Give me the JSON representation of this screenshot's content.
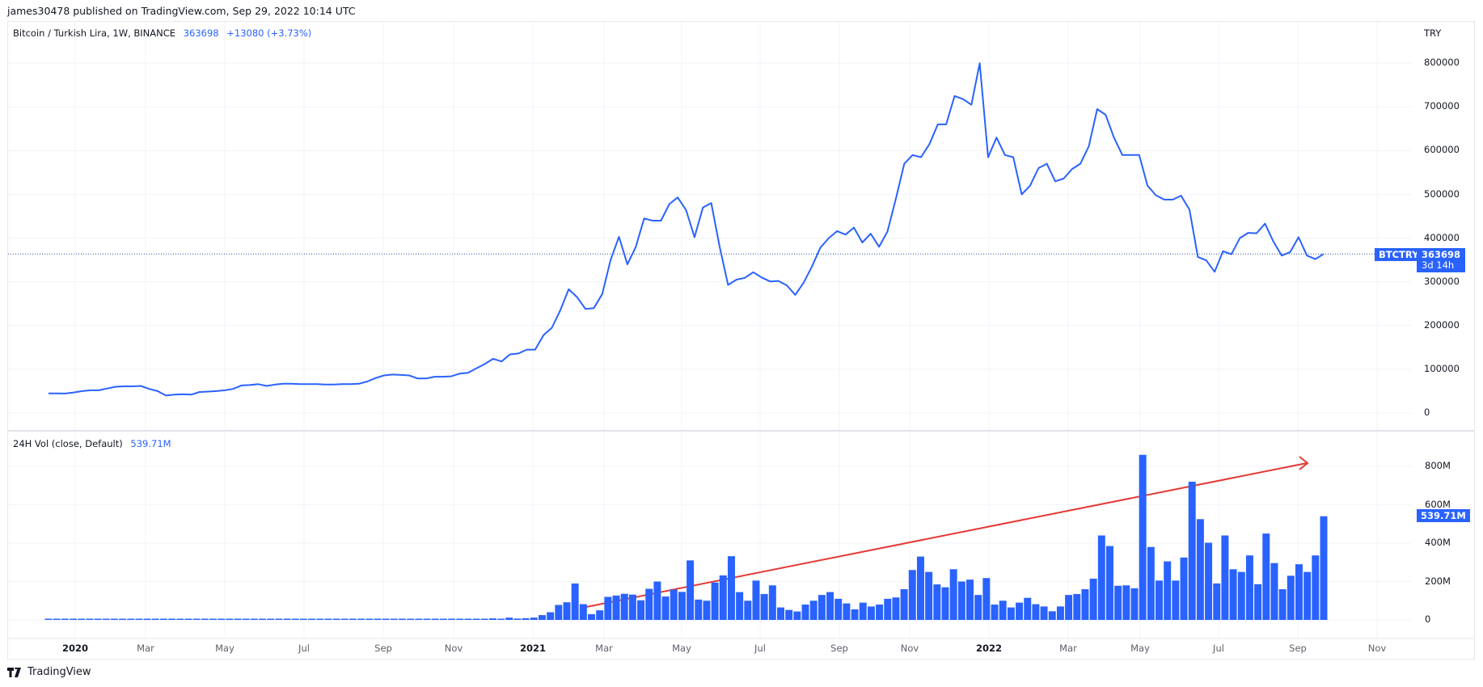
{
  "publish_info": "james30478 published on TradingView.com, Sep 29, 2022 10:14 UTC",
  "price_panel": {
    "legend_title": "Bitcoin / Turkish Lira, 1W, BINANCE",
    "legend_last": "363698",
    "legend_change": "+13080 (+3.73%)",
    "currency": "TRY",
    "symbol_tag": "BTCTRY",
    "price_tag": "363698",
    "countdown": "3d 14h"
  },
  "volume_panel": {
    "legend_title": "24H Vol (close, Default)",
    "legend_value": "539.71M",
    "value_tag": "539.71M"
  },
  "footer": {
    "brand": "TradingView",
    "logo_icon": "tradingview-logo-icon"
  },
  "colors": {
    "line": "#2962ff",
    "bar": "#2962ff",
    "arrow": "#e53935",
    "grid": "#f0f3fa"
  },
  "chart_data": [
    {
      "type": "line",
      "title": "Bitcoin / Turkish Lira, 1W, BINANCE",
      "xlabel": "",
      "ylabel": "TRY",
      "ylim": [
        0,
        800000
      ],
      "y_ticks": [
        "0",
        "100000",
        "200000",
        "300000",
        "400000",
        "500000",
        "600000",
        "700000",
        "800000"
      ],
      "x_ticks": [
        "2020",
        "Mar",
        "May",
        "Jul",
        "Sep",
        "Nov",
        "2021",
        "Mar",
        "May",
        "Jul",
        "Sep",
        "Nov",
        "2022",
        "Mar",
        "May",
        "Jul",
        "Sep",
        "Nov"
      ],
      "grid": true,
      "last_value": 363698,
      "series": [
        {
          "name": "BTCTRY close (weekly, approx.)",
          "values": [
            45000,
            45000,
            44500,
            47000,
            50000,
            52000,
            52000,
            56000,
            60000,
            61000,
            61000,
            62000,
            55000,
            50000,
            40000,
            42000,
            43000,
            42000,
            48000,
            49000,
            50000,
            52000,
            55000,
            63000,
            64000,
            66000,
            62000,
            65000,
            67000,
            67000,
            66000,
            66000,
            66000,
            65000,
            65000,
            66000,
            66000,
            67000,
            72000,
            80000,
            86000,
            88000,
            87000,
            86000,
            79000,
            79000,
            83000,
            83000,
            84000,
            90000,
            92000,
            102000,
            112000,
            124000,
            118000,
            134000,
            136000,
            145000,
            145000,
            178000,
            195000,
            235000,
            283000,
            265000,
            238000,
            240000,
            272000,
            350000,
            403000,
            340000,
            380000,
            445000,
            440000,
            440000,
            478000,
            493000,
            464000,
            402000,
            470000,
            480000,
            380000,
            293000,
            305000,
            309000,
            322000,
            310000,
            301000,
            302000,
            292000,
            270000,
            298000,
            335000,
            378000,
            400000,
            416000,
            408000,
            424000,
            390000,
            410000,
            380000,
            415000,
            490000,
            570000,
            590000,
            585000,
            615000,
            660000,
            660000,
            725000,
            718000,
            705000,
            800000,
            585000,
            630000,
            590000,
            585000,
            500000,
            520000,
            560000,
            570000,
            530000,
            536000,
            558000,
            570000,
            610000,
            695000,
            682000,
            630000,
            590000,
            590000,
            590000,
            520000,
            498000,
            488000,
            488000,
            497000,
            465000,
            357000,
            349000,
            323000,
            370000,
            363000,
            400000,
            412000,
            411000,
            433000,
            392000,
            360000,
            368000,
            402000,
            360000,
            352000,
            363698
          ]
        }
      ]
    },
    {
      "type": "bar",
      "title": "24H Vol (close, Default)",
      "ylabel": "",
      "ylim": [
        0,
        860000000
      ],
      "y_ticks": [
        "0",
        "200M",
        "400M",
        "600M",
        "800M"
      ],
      "last_value": "539.71M",
      "series": [
        {
          "name": "24H Vol (M, approx.)",
          "values": [
            1,
            1,
            1,
            1,
            1,
            1,
            1,
            1,
            1,
            1,
            1,
            1,
            2,
            2,
            1,
            1,
            1,
            2,
            2,
            2,
            2,
            2,
            3,
            6,
            3,
            3,
            3,
            3,
            3,
            3,
            3,
            3,
            3,
            3,
            3,
            2,
            3,
            3,
            3,
            3,
            6,
            6,
            3,
            3,
            3,
            3,
            3,
            3,
            3,
            3,
            3,
            3,
            3,
            3,
            8,
            4,
            12,
            7,
            9,
            12,
            25,
            40,
            78,
            92,
            190,
            82,
            30,
            50,
            120,
            127,
            136,
            132,
            102,
            162,
            200,
            122,
            158,
            146,
            310,
            106,
            100,
            195,
            232,
            332,
            145,
            100,
            205,
            135,
            180,
            65,
            52,
            44,
            80,
            100,
            130,
            145,
            110,
            86,
            55,
            90,
            70,
            80,
            110,
            117,
            160,
            260,
            330,
            250,
            185,
            170,
            264,
            200,
            210,
            130,
            218,
            80,
            100,
            65,
            90,
            115,
            82,
            70,
            45,
            70,
            130,
            135,
            160,
            215,
            440,
            385,
            178,
            180,
            165,
            860,
            380,
            205,
            305,
            205,
            325,
            720,
            525,
            402,
            190,
            440,
            264,
            250,
            336,
            186,
            450,
            296,
            160,
            230,
            290,
            250,
            336,
            540
          ]
        }
      ],
      "annotations": [
        {
          "type": "arrow",
          "color": "#e53935",
          "description": "rising trend line on volume from mid-2021 to Oct 2022"
        }
      ]
    }
  ]
}
